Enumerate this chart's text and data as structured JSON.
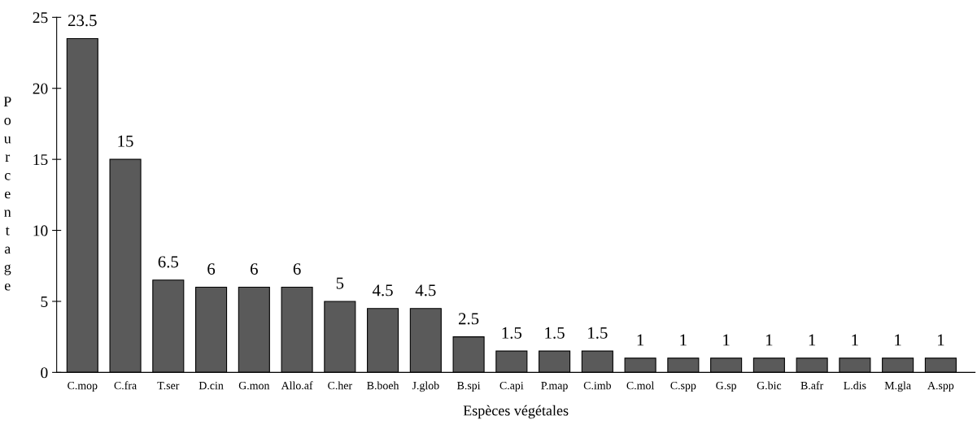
{
  "chart_data": {
    "type": "bar",
    "xlabel": "Espèces végétales",
    "ylabel": "Pourcentage",
    "categories": [
      "C.mop",
      "C.fra",
      "T.ser",
      "D.cin",
      "G.mon",
      "Allo.af",
      "C.her",
      "B.boeh",
      "J.glob",
      "B.spi",
      "C.api",
      "P.map",
      "C.imb",
      "C.mol",
      "C.spp",
      "G.sp",
      "G.bic",
      "B.afr",
      "L.dis",
      "M.gla",
      "A.spp"
    ],
    "values": [
      23.5,
      15,
      6.5,
      6,
      6,
      6,
      5,
      4.5,
      4.5,
      2.5,
      1.5,
      1.5,
      1.5,
      1,
      1,
      1,
      1,
      1,
      1,
      1,
      1
    ],
    "color": "#5a5a5a",
    "ylim": [
      0,
      25
    ],
    "yticks": [
      0,
      5,
      10,
      15,
      20,
      25
    ],
    "data_labels": true,
    "grid": false,
    "legend": false
  }
}
